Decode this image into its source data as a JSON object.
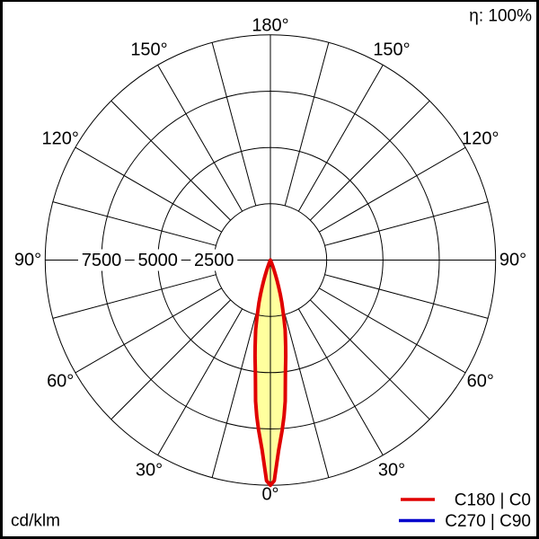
{
  "window": {
    "efficiency": "η: 100%",
    "unit": "cd/klm"
  },
  "chart_data": {
    "type": "line",
    "subtype": "polar-luminous-intensity-diagram",
    "title": "",
    "efficiency": "η: 100%",
    "unit": "cd/klm",
    "polar_axis": {
      "angle_label_texts": [
        "0°",
        "30°",
        "60°",
        "90°",
        "120°",
        "150°",
        "180°"
      ],
      "angle_label_values_deg": [
        0,
        30,
        60,
        90,
        120,
        150,
        180
      ],
      "angle_grid_step_deg": 15,
      "ring_values": [
        2500,
        5000,
        7500,
        10000
      ],
      "ring_tick_labels": [
        "2500",
        "5000",
        "7500"
      ],
      "ring_tick_values": [
        2500,
        5000,
        7500
      ],
      "rmax": 10000,
      "zero_angle_position": "bottom"
    },
    "series": [
      {
        "name": "C180 | C0",
        "color": "#e00000",
        "fill_color": "#ffff9e",
        "mirrored": true,
        "points_deg_cdklm": [
          [
            0,
            10000
          ],
          [
            1,
            9800
          ],
          [
            2.5,
            8450
          ],
          [
            4,
            7550
          ],
          [
            5,
            6950
          ],
          [
            6,
            6300
          ],
          [
            7.5,
            5100
          ],
          [
            9,
            4350
          ],
          [
            10,
            3900
          ],
          [
            11,
            3500
          ],
          [
            12,
            3150
          ],
          [
            13,
            2700
          ],
          [
            14,
            2300
          ],
          [
            15,
            1950
          ],
          [
            16,
            1600
          ],
          [
            17,
            1250
          ],
          [
            18,
            950
          ],
          [
            19,
            700
          ],
          [
            20,
            480
          ],
          [
            21,
            300
          ],
          [
            22,
            160
          ],
          [
            23,
            60
          ],
          [
            24,
            0
          ]
        ]
      },
      {
        "name": "C270 | C90",
        "color": "#0000cc",
        "fill_color": "none",
        "mirrored": true,
        "points_deg_cdklm": [
          [
            0,
            10000
          ],
          [
            1,
            9800
          ],
          [
            2.5,
            8450
          ],
          [
            4,
            7550
          ],
          [
            5,
            6950
          ],
          [
            6,
            6300
          ],
          [
            7.5,
            5100
          ],
          [
            9,
            4350
          ],
          [
            10,
            3900
          ],
          [
            11,
            3500
          ],
          [
            12,
            3150
          ],
          [
            13,
            2700
          ],
          [
            14,
            2300
          ],
          [
            15,
            1950
          ],
          [
            16,
            1600
          ],
          [
            17,
            1250
          ],
          [
            18,
            950
          ],
          [
            19,
            700
          ],
          [
            20,
            480
          ],
          [
            21,
            300
          ],
          [
            22,
            160
          ],
          [
            23,
            60
          ],
          [
            24,
            0
          ]
        ]
      }
    ],
    "legend": {
      "position": "bottom-right",
      "items": [
        {
          "label": "C180 | C0",
          "color": "#e00000"
        },
        {
          "label": "C270 | C90",
          "color": "#0000cc"
        }
      ]
    }
  }
}
